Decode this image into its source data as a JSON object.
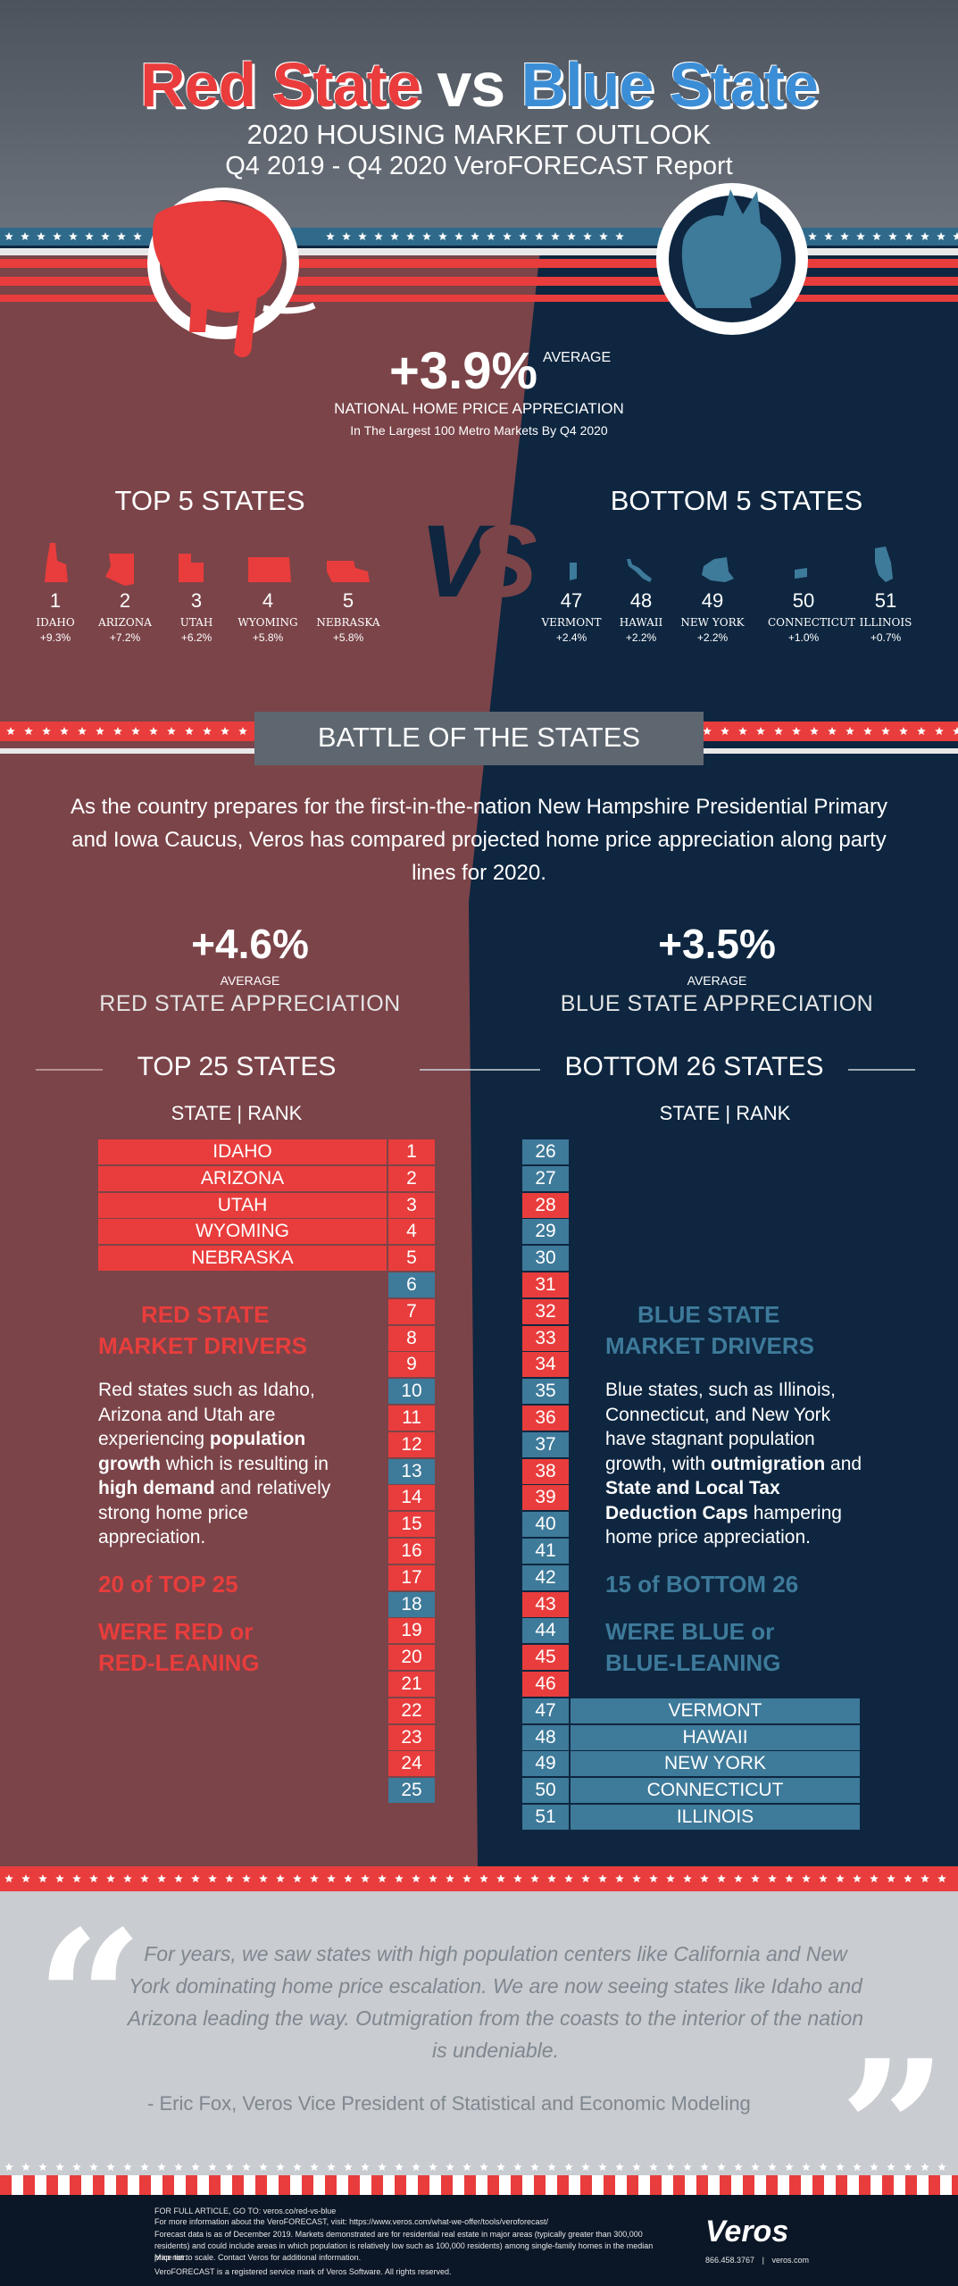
{
  "header": {
    "title_red": "Red State",
    "title_vs": "vs",
    "title_blue": "Blue State",
    "subtitle1": "2020 HOUSING MARKET OUTLOOK",
    "subtitle2": "Q4 2019 - Q4 2020 VeroFORECAST Report"
  },
  "national": {
    "value": "+3.9%",
    "avg_word": "AVERAGE",
    "label": "NATIONAL HOME PRICE APPRECIATION",
    "sub": "In The Largest 100 Metro Markets By Q4 2020"
  },
  "top5": {
    "heading": "TOP 5 STATES",
    "states": [
      {
        "rank": "1",
        "name": "IDAHO",
        "pct": "+9.3%"
      },
      {
        "rank": "2",
        "name": "ARIZONA",
        "pct": "+7.2%"
      },
      {
        "rank": "3",
        "name": "UTAH",
        "pct": "+6.2%"
      },
      {
        "rank": "4",
        "name": "WYOMING",
        "pct": "+5.8%"
      },
      {
        "rank": "5",
        "name": "NEBRASKA",
        "pct": "+5.8%"
      }
    ]
  },
  "bottom5": {
    "heading": "BOTTOM 5 STATES",
    "states": [
      {
        "rank": "47",
        "name": "VERMONT",
        "pct": "+2.4%"
      },
      {
        "rank": "48",
        "name": "HAWAII",
        "pct": "+2.2%"
      },
      {
        "rank": "49",
        "name": "NEW YORK",
        "pct": "+2.2%"
      },
      {
        "rank": "50",
        "name": "CONNECTICUT",
        "pct": "+1.0%"
      },
      {
        "rank": "51",
        "name": "ILLINOIS",
        "pct": "+0.7%"
      }
    ]
  },
  "vs_label": "VS",
  "battle": {
    "title": "BATTLE OF THE STATES",
    "intro": "As the country prepares for the first-in-the-nation New Hampshire Presidential Primary and Iowa Caucus, Veros has compared projected home price appreciation along party lines for 2020."
  },
  "red": {
    "value": "+4.6%",
    "avg_word": "AVERAGE",
    "label": "RED STATE  APPRECIATION",
    "column_head": "TOP 25 STATES",
    "state_rank": "STATE | RANK",
    "named": [
      "IDAHO",
      "ARIZONA",
      "UTAH",
      "WYOMING",
      "NEBRASKA"
    ],
    "ranks": [
      {
        "n": "1",
        "c": "red"
      },
      {
        "n": "2",
        "c": "red"
      },
      {
        "n": "3",
        "c": "red"
      },
      {
        "n": "4",
        "c": "red"
      },
      {
        "n": "5",
        "c": "red"
      },
      {
        "n": "6",
        "c": "blue"
      },
      {
        "n": "7",
        "c": "red"
      },
      {
        "n": "8",
        "c": "red"
      },
      {
        "n": "9",
        "c": "red"
      },
      {
        "n": "10",
        "c": "blue"
      },
      {
        "n": "11",
        "c": "red"
      },
      {
        "n": "12",
        "c": "red"
      },
      {
        "n": "13",
        "c": "blue"
      },
      {
        "n": "14",
        "c": "red"
      },
      {
        "n": "15",
        "c": "red"
      },
      {
        "n": "16",
        "c": "red"
      },
      {
        "n": "17",
        "c": "red"
      },
      {
        "n": "18",
        "c": "blue"
      },
      {
        "n": "19",
        "c": "red"
      },
      {
        "n": "20",
        "c": "red"
      },
      {
        "n": "21",
        "c": "red"
      },
      {
        "n": "22",
        "c": "red"
      },
      {
        "n": "23",
        "c": "red"
      },
      {
        "n": "24",
        "c": "red"
      },
      {
        "n": "25",
        "c": "blue"
      }
    ],
    "drivers_title1": "RED STATE",
    "drivers_title2": "MARKET  DRIVERS",
    "drivers_text1": "Red states such as Idaho, Arizona and Utah are experiencing ",
    "drivers_bold1": "population growth",
    "drivers_text2": " which is resulting in ",
    "drivers_bold2": "high demand",
    "drivers_text3": " and relatively strong home price appreciation.",
    "note1": "20 of TOP 25",
    "note2": "WERE RED or RED-LEANING"
  },
  "blue": {
    "value": "+3.5%",
    "avg_word": "AVERAGE",
    "label": "BLUE STATE  APPRECIATION",
    "column_head": "BOTTOM 26 STATES",
    "state_rank": "STATE | RANK",
    "named": [
      "VERMONT",
      "HAWAII",
      "NEW YORK",
      "CONNECTICUT",
      "ILLINOIS"
    ],
    "ranks": [
      {
        "n": "26",
        "c": "blue"
      },
      {
        "n": "27",
        "c": "blue"
      },
      {
        "n": "28",
        "c": "red"
      },
      {
        "n": "29",
        "c": "blue"
      },
      {
        "n": "30",
        "c": "blue"
      },
      {
        "n": "31",
        "c": "red"
      },
      {
        "n": "32",
        "c": "red"
      },
      {
        "n": "33",
        "c": "red"
      },
      {
        "n": "34",
        "c": "red"
      },
      {
        "n": "35",
        "c": "blue"
      },
      {
        "n": "36",
        "c": "red"
      },
      {
        "n": "37",
        "c": "blue"
      },
      {
        "n": "38",
        "c": "red"
      },
      {
        "n": "39",
        "c": "red"
      },
      {
        "n": "40",
        "c": "blue"
      },
      {
        "n": "41",
        "c": "blue"
      },
      {
        "n": "42",
        "c": "blue"
      },
      {
        "n": "43",
        "c": "red"
      },
      {
        "n": "44",
        "c": "blue"
      },
      {
        "n": "45",
        "c": "red"
      },
      {
        "n": "46",
        "c": "red"
      },
      {
        "n": "47",
        "c": "blue"
      },
      {
        "n": "48",
        "c": "blue"
      },
      {
        "n": "49",
        "c": "blue"
      },
      {
        "n": "50",
        "c": "blue"
      },
      {
        "n": "51",
        "c": "blue"
      }
    ],
    "drivers_title1": "BLUE STATE",
    "drivers_title2": "MARKET DRIVERS",
    "drivers_text1": "Blue states, such as Illinois, Connecticut, and New York have stagnant population growth, with ",
    "drivers_bold1": "outmigration",
    "drivers_text2": " and ",
    "drivers_bold2": "State and Local Tax Deduction Caps",
    "drivers_text3": " hampering home price appreciation.",
    "note1": "15 of BOTTOM 26",
    "note2": "WERE BLUE or BLUE-LEANING"
  },
  "quote": {
    "text": "For years, we saw states with high population centers like California and New York dominating home price escalation. We are now seeing states like Idaho and Arizona leading the way. Outmigration from the coasts to the interior of the nation is undeniable.",
    "attribution": "- Eric Fox, Veros Vice President of Statistical and Economic Modeling",
    "open_mark": "“",
    "close_mark": "”"
  },
  "footer": {
    "line1": "FOR FULL ARTICLE, GO TO:  veros.co/red-vs-blue",
    "line2": "For more information about the VeroFORECAST, visit: https://www.veros.com/what-we-offer/tools/veroforecast/",
    "line3": "Forecast data is as of December 2019. Markets demonstrated are for residential real estate in major areas (typically greater than 300,000 residents) and could include areas in which population is relatively low such as 100,000 residents) among single-family homes in the median price tier.",
    "line4": "Map not to scale. Contact Veros for additional information.",
    "line5": "VeroFORECAST is a registered service mark of Veros Software. All rights reserved.",
    "logo": "Veros",
    "phone": "866.458.3767",
    "sep": "|",
    "site": "veros.com"
  },
  "colors": {
    "red": "#e83d3c",
    "blue_rank": "#3e7a9a",
    "red_panel": "#7b4449",
    "navy": "#0e2640",
    "gray_header": "#5e6670",
    "quote_bg": "#c9ccd0"
  }
}
